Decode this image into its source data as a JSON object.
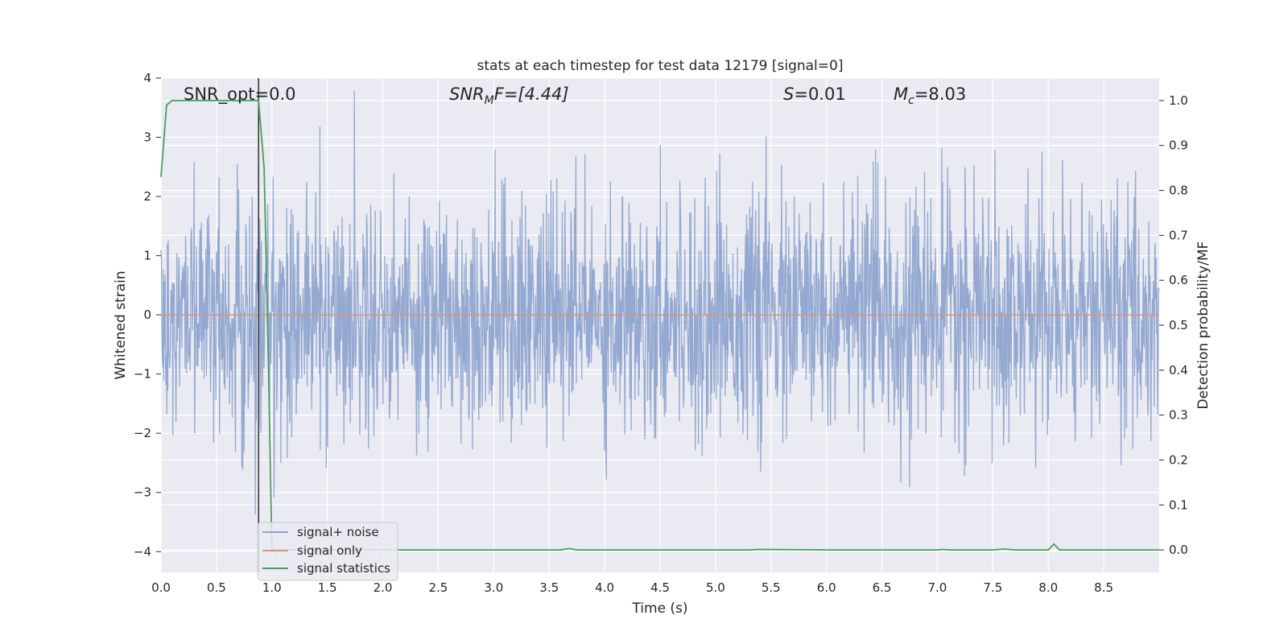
{
  "chart_data": {
    "type": "line",
    "title": "stats at each timestep for test data 12179 [signal=0]",
    "xlabel": "Time (s)",
    "ylabel": "Whitened strain",
    "ylabel_right": "Detection probability/MF",
    "xlim": [
      0,
      9.0
    ],
    "ylim": [
      -4.35,
      4.0
    ],
    "ylim_right": [
      -0.05,
      1.05
    ],
    "xticks": [
      0.0,
      0.5,
      1.0,
      1.5,
      2.0,
      2.5,
      3.0,
      3.5,
      4.0,
      4.5,
      5.0,
      5.5,
      6.0,
      6.5,
      7.0,
      7.5,
      8.0,
      8.5
    ],
    "xtick_labels": [
      "0.0",
      "0.5",
      "1.0",
      "1.5",
      "2.0",
      "2.5",
      "3.0",
      "3.5",
      "4.0",
      "4.5",
      "5.0",
      "5.5",
      "6.0",
      "6.5",
      "7.0",
      "7.5",
      "8.0",
      "8.5"
    ],
    "yticks": [
      4,
      3,
      2,
      1,
      0,
      -1,
      -2,
      -3,
      -4
    ],
    "ytick_labels": [
      "4",
      "3",
      "2",
      "1",
      "0",
      "−1",
      "−2",
      "−3",
      "−4"
    ],
    "yticks_right": [
      1.0,
      0.9,
      0.8,
      0.7,
      0.6,
      0.5,
      0.4,
      0.3,
      0.2,
      0.1,
      0.0
    ],
    "ytick_labels_right": [
      "1.0",
      "0.9",
      "0.8",
      "0.7",
      "0.6",
      "0.5",
      "0.4",
      "0.3",
      "0.2",
      "0.1",
      "0.0"
    ],
    "vline_x": 0.88,
    "annotations": {
      "snr_opt": "SNR_opt=0.0",
      "snr_mf_main": "SNR",
      "snr_mf_sub": "M",
      "snr_mf_rest": "F=[4.44]",
      "s_var": "S",
      "s_value": "=0.01",
      "mc_var": "M",
      "mc_sub": "c",
      "mc_value": "=8.03"
    },
    "series": [
      {
        "name": "signal+ noise",
        "color": "#8fa5cf",
        "axis": "left",
        "kind": "noise",
        "npoints": 2200,
        "std": 1.0,
        "seed": 12179,
        "clip_max": 3.9,
        "clip_min": -4.2
      },
      {
        "name": "signal only",
        "color": "#e0917a",
        "axis": "left",
        "kind": "constant",
        "value": 0.0
      },
      {
        "name": "signal statistics",
        "color": "#4c9d5a",
        "axis": "right",
        "x": [
          0.0,
          0.05,
          0.1,
          0.2,
          0.3,
          0.4,
          0.5,
          0.6,
          0.7,
          0.8,
          0.88,
          0.93,
          0.97,
          1.0,
          1.1,
          2.0,
          3.0,
          3.6,
          3.68,
          3.75,
          4.0,
          5.0,
          5.3,
          5.4,
          6.0,
          7.0,
          7.05,
          7.1,
          7.5,
          7.6,
          7.7,
          8.0,
          8.05,
          8.1,
          8.2,
          9.0
        ],
        "y": [
          0.83,
          0.99,
          1.0,
          1.0,
          1.0,
          1.0,
          1.0,
          1.0,
          1.0,
          1.0,
          1.0,
          0.85,
          0.4,
          0.0,
          0.0,
          0.0,
          0.0,
          0.0,
          0.003,
          0.0,
          0.0,
          0.0,
          0.0,
          0.001,
          0.0,
          0.0,
          0.001,
          0.0,
          0.0,
          0.002,
          0.0,
          0.0,
          0.013,
          0.0,
          0.0,
          0.0
        ]
      }
    ],
    "legend": [
      "signal+ noise",
      "signal only",
      "signal statistics"
    ],
    "legend_position": "lower-left",
    "grid": true,
    "colors": {
      "axes_bg": "#eaeaf2",
      "grid": "#ffffff",
      "vline": "#3a3a3a"
    }
  }
}
